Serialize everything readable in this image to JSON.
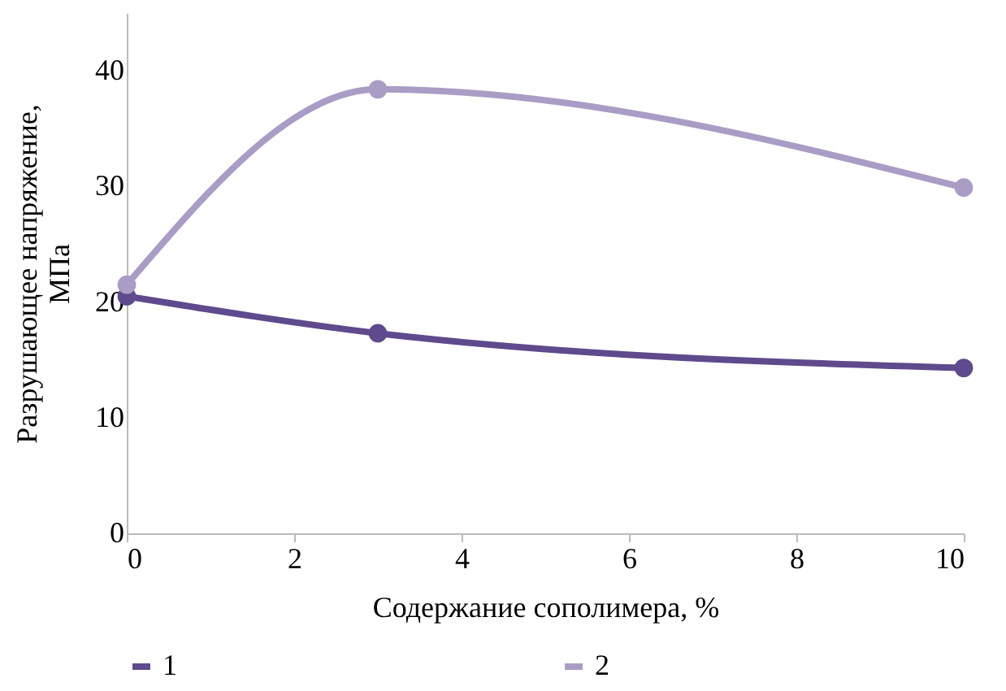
{
  "chart_data": {
    "type": "line",
    "xlabel": "Содержание сополимера, %",
    "ylabel": "Разрушающее напряжение, МПа",
    "x": [
      0,
      3,
      10
    ],
    "series": [
      {
        "name": "1",
        "color": "#5e4a8c",
        "values": [
          20.5,
          17.3,
          14.3
        ]
      },
      {
        "name": "2",
        "color": "#a99dc6",
        "values": [
          21.5,
          38.4,
          29.9
        ]
      }
    ],
    "xlim": [
      0,
      10
    ],
    "xticks": [
      0,
      2,
      4,
      6,
      8,
      10
    ],
    "ylim": [
      0,
      45
    ],
    "yticks": [
      0,
      10,
      20,
      30,
      40
    ],
    "grid": false,
    "legend": "bottom",
    "marker": "circle",
    "line_style": "solid"
  }
}
